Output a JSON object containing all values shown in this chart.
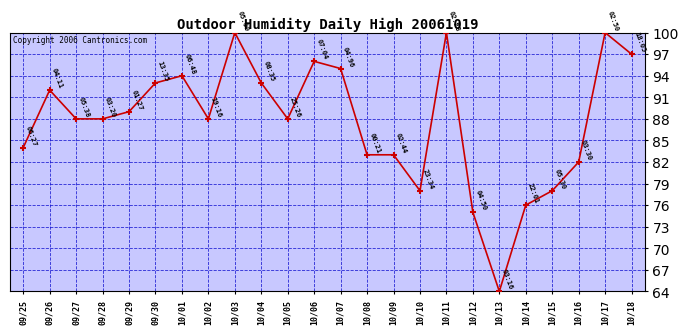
{
  "title": "Outdoor Humidity Daily High 20061019",
  "copyright": "Copyright 2006 Cantronics.com",
  "background_color": "#ffffff",
  "plot_bg_color": "#c8c8ff",
  "grid_color": "#0000cc",
  "line_color": "#cc0000",
  "marker_color": "#cc0000",
  "x_labels": [
    "09/25",
    "09/26",
    "09/27",
    "09/28",
    "09/29",
    "09/30",
    "10/01",
    "10/02",
    "10/03",
    "10/04",
    "10/05",
    "10/06",
    "10/07",
    "10/08",
    "10/09",
    "10/10",
    "10/11",
    "10/12",
    "10/13",
    "10/14",
    "10/15",
    "10/16",
    "10/17",
    "10/18"
  ],
  "y_values": [
    84,
    92,
    88,
    88,
    89,
    93,
    94,
    88,
    100,
    93,
    88,
    96,
    95,
    83,
    83,
    78,
    100,
    75,
    64,
    76,
    78,
    82,
    100,
    97
  ],
  "point_labels": [
    "06:27",
    "04:11",
    "05:38",
    "03:20",
    "01:27",
    "13:35",
    "06:48",
    "19:16",
    "05:00",
    "08:35",
    "25:26",
    "07:04",
    "04:96",
    "00:21",
    "02:44",
    "23:34",
    "02:28",
    "04:50",
    "03:16",
    "22:01",
    "05:30",
    "03:30",
    "02:50",
    "18:05"
  ],
  "ylim": [
    64,
    100
  ],
  "yticks": [
    64,
    67,
    70,
    73,
    76,
    79,
    82,
    85,
    88,
    91,
    94,
    97,
    100
  ]
}
